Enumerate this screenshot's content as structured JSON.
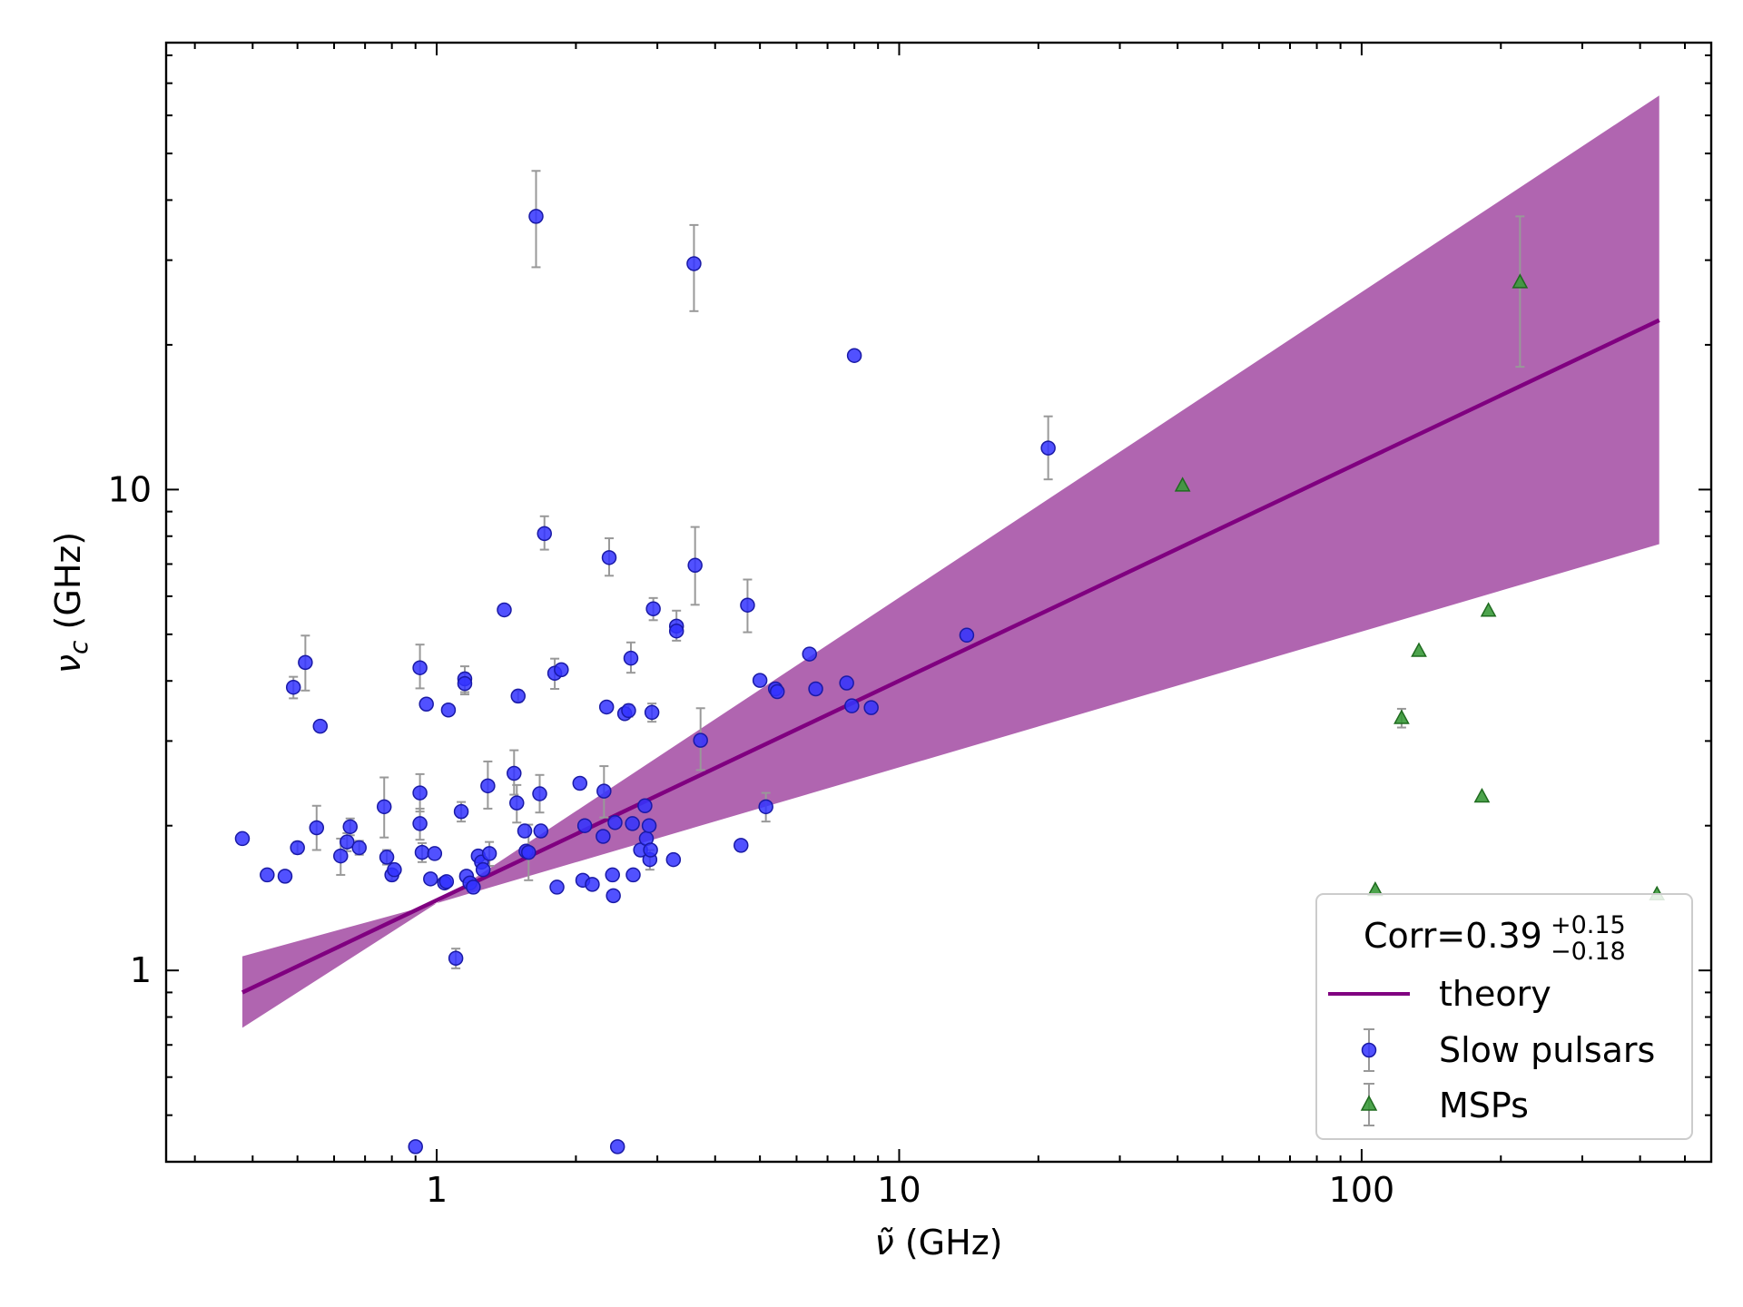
{
  "chart_data": {
    "type": "scatter",
    "title": "",
    "xlabel_main": "ν̃",
    "xlabel_unit": " (GHz)",
    "ylabel_main": "ν",
    "ylabel_sub": "c",
    "ylabel_unit": " (GHz)",
    "x_scale": "log",
    "y_scale": "log",
    "xlim": [
      0.26,
      570
    ],
    "ylim": [
      0.4,
      85
    ],
    "x_tick_labels": [
      {
        "value": 1,
        "label": "1"
      },
      {
        "value": 10,
        "label": "10"
      },
      {
        "value": 100,
        "label": "100"
      }
    ],
    "y_tick_labels": [
      {
        "value": 1,
        "label": "1"
      },
      {
        "value": 10,
        "label": "10"
      }
    ],
    "grid": false,
    "legend": {
      "placement": "bottom-right",
      "title_main": "Corr=0.39",
      "title_sup": "+0.15",
      "title_sub": "−0.18",
      "entries": [
        "theory",
        "Slow pulsars",
        "MSPs"
      ]
    },
    "colors": {
      "theory": "#800080",
      "band": "#b065b0",
      "slow": "#3333ff",
      "slow_edge": "#1a1aa6",
      "msp": "#3a9a3a",
      "msp_edge": "#1f6b1f",
      "errorbar": "#999999"
    },
    "theory_line": {
      "x": [
        0.38,
        440
      ],
      "y": [
        0.9,
        22.5
      ]
    },
    "band": {
      "x": [
        0.38,
        1.0,
        440
      ],
      "lower": [
        0.76,
        1.38,
        7.7
      ],
      "upper": [
        1.07,
        1.38,
        66
      ]
    },
    "series": [
      {
        "name": "Slow pulsars",
        "marker": "circle",
        "points": [
          {
            "x": 0.38,
            "y": 1.88
          },
          {
            "x": 0.43,
            "y": 1.58
          },
          {
            "x": 0.47,
            "y": 1.57
          },
          {
            "x": 0.49,
            "y": 3.88,
            "yerr": [
              0.2,
              0.2
            ]
          },
          {
            "x": 0.5,
            "y": 1.8,
            "yerr": [
              0.05,
              0.05
            ]
          },
          {
            "x": 0.52,
            "y": 4.37,
            "yerr": [
              0.55,
              0.6
            ]
          },
          {
            "x": 0.55,
            "y": 1.98,
            "yerr": [
              0.2,
              0.22
            ]
          },
          {
            "x": 0.56,
            "y": 3.22
          },
          {
            "x": 0.62,
            "y": 1.73,
            "yerr": [
              0.15,
              0.15
            ]
          },
          {
            "x": 0.64,
            "y": 1.85,
            "yerr": [
              0.08,
              0.08
            ]
          },
          {
            "x": 0.65,
            "y": 1.99,
            "yerr": [
              0.08,
              0.08
            ]
          },
          {
            "x": 0.68,
            "y": 1.8,
            "yerr": [
              0.06,
              0.06
            ]
          },
          {
            "x": 0.77,
            "y": 2.19,
            "yerr": [
              0.3,
              0.33
            ]
          },
          {
            "x": 0.78,
            "y": 1.72,
            "yerr": [
              0.06,
              0.06
            ]
          },
          {
            "x": 0.8,
            "y": 1.58,
            "yerr": [
              0.04,
              0.04
            ]
          },
          {
            "x": 0.81,
            "y": 1.62
          },
          {
            "x": 0.9,
            "y": 0.43
          },
          {
            "x": 0.92,
            "y": 4.26,
            "yerr": [
              0.4,
              0.5
            ]
          },
          {
            "x": 0.92,
            "y": 2.34,
            "yerr": [
              0.2,
              0.22
            ]
          },
          {
            "x": 0.92,
            "y": 2.02,
            "yerr": [
              0.15,
              0.15
            ]
          },
          {
            "x": 0.93,
            "y": 1.76,
            "yerr": [
              0.08,
              0.08
            ]
          },
          {
            "x": 0.95,
            "y": 3.58
          },
          {
            "x": 0.97,
            "y": 1.55
          },
          {
            "x": 0.99,
            "y": 1.75
          },
          {
            "x": 1.04,
            "y": 1.52
          },
          {
            "x": 1.05,
            "y": 1.53
          },
          {
            "x": 1.06,
            "y": 3.48
          },
          {
            "x": 1.1,
            "y": 1.06,
            "yerr": [
              0.05,
              0.05
            ]
          },
          {
            "x": 1.13,
            "y": 2.14,
            "yerr": [
              0.1,
              0.1
            ]
          },
          {
            "x": 1.15,
            "y": 4.04,
            "yerr": [
              0.25,
              0.25
            ]
          },
          {
            "x": 1.15,
            "y": 3.95,
            "yerr": [
              0.2,
              0.2
            ]
          },
          {
            "x": 1.16,
            "y": 1.57
          },
          {
            "x": 1.18,
            "y": 1.52
          },
          {
            "x": 1.2,
            "y": 1.49
          },
          {
            "x": 1.23,
            "y": 1.73
          },
          {
            "x": 1.25,
            "y": 1.68
          },
          {
            "x": 1.26,
            "y": 1.62
          },
          {
            "x": 1.29,
            "y": 2.42,
            "yerr": [
              0.25,
              0.3
            ]
          },
          {
            "x": 1.3,
            "y": 1.75,
            "yerr": [
              0.1,
              0.1
            ]
          },
          {
            "x": 1.4,
            "y": 5.62
          },
          {
            "x": 1.47,
            "y": 2.57,
            "yerr": [
              0.25,
              0.3
            ]
          },
          {
            "x": 1.49,
            "y": 2.23,
            "yerr": [
              0.2,
              0.2
            ]
          },
          {
            "x": 1.5,
            "y": 3.72,
            "yerr": [
              0.1,
              0.1
            ]
          },
          {
            "x": 1.55,
            "y": 1.95
          },
          {
            "x": 1.56,
            "y": 1.77
          },
          {
            "x": 1.58,
            "y": 1.76,
            "yerr": [
              0.22,
              0.25
            ]
          },
          {
            "x": 1.64,
            "y": 37.0,
            "yerr": [
              8.0,
              9.0
            ]
          },
          {
            "x": 1.67,
            "y": 2.33,
            "yerr": [
              0.2,
              0.22
            ]
          },
          {
            "x": 1.68,
            "y": 1.95
          },
          {
            "x": 1.71,
            "y": 8.1,
            "yerr": [
              0.6,
              0.7
            ]
          },
          {
            "x": 1.8,
            "y": 4.15,
            "yerr": [
              0.3,
              0.3
            ]
          },
          {
            "x": 1.82,
            "y": 1.49
          },
          {
            "x": 1.86,
            "y": 4.22
          },
          {
            "x": 2.04,
            "y": 2.45
          },
          {
            "x": 2.07,
            "y": 1.54
          },
          {
            "x": 2.09,
            "y": 2.0
          },
          {
            "x": 2.17,
            "y": 1.51
          },
          {
            "x": 2.29,
            "y": 1.9
          },
          {
            "x": 2.3,
            "y": 2.36,
            "yerr": [
              0.28,
              0.3
            ]
          },
          {
            "x": 2.33,
            "y": 3.53
          },
          {
            "x": 2.36,
            "y": 7.22,
            "yerr": [
              0.6,
              0.7
            ]
          },
          {
            "x": 2.4,
            "y": 1.58
          },
          {
            "x": 2.41,
            "y": 1.43
          },
          {
            "x": 2.43,
            "y": 2.03
          },
          {
            "x": 2.46,
            "y": 0.43
          },
          {
            "x": 2.55,
            "y": 3.42
          },
          {
            "x": 2.6,
            "y": 3.47,
            "yerr": [
              0.1,
              0.1
            ]
          },
          {
            "x": 2.63,
            "y": 4.46,
            "yerr": [
              0.3,
              0.35
            ]
          },
          {
            "x": 2.65,
            "y": 2.02
          },
          {
            "x": 2.66,
            "y": 1.58
          },
          {
            "x": 2.76,
            "y": 1.78
          },
          {
            "x": 2.82,
            "y": 2.2
          },
          {
            "x": 2.84,
            "y": 1.88
          },
          {
            "x": 2.88,
            "y": 2.0
          },
          {
            "x": 2.89,
            "y": 1.7,
            "yerr": [
              0.08,
              0.08
            ]
          },
          {
            "x": 2.9,
            "y": 1.78
          },
          {
            "x": 2.92,
            "y": 3.44,
            "yerr": [
              0.15,
              0.15
            ]
          },
          {
            "x": 2.94,
            "y": 5.65,
            "yerr": [
              0.3,
              0.3
            ]
          },
          {
            "x": 3.25,
            "y": 1.7
          },
          {
            "x": 3.3,
            "y": 5.2,
            "yerr": [
              0.35,
              0.4
            ]
          },
          {
            "x": 3.3,
            "y": 5.08
          },
          {
            "x": 3.6,
            "y": 29.5,
            "yerr": [
              6.0,
              6.0
            ]
          },
          {
            "x": 3.62,
            "y": 6.96,
            "yerr": [
              1.2,
              1.4
            ]
          },
          {
            "x": 3.72,
            "y": 3.01,
            "yerr": [
              0.4,
              0.5
            ]
          },
          {
            "x": 4.55,
            "y": 1.82
          },
          {
            "x": 4.7,
            "y": 5.75,
            "yerr": [
              0.7,
              0.75
            ]
          },
          {
            "x": 5.0,
            "y": 4.01
          },
          {
            "x": 5.15,
            "y": 2.19,
            "yerr": [
              0.15,
              0.15
            ]
          },
          {
            "x": 5.4,
            "y": 3.85
          },
          {
            "x": 5.45,
            "y": 3.8
          },
          {
            "x": 6.4,
            "y": 4.55
          },
          {
            "x": 6.6,
            "y": 3.85
          },
          {
            "x": 7.7,
            "y": 3.96
          },
          {
            "x": 7.9,
            "y": 3.55
          },
          {
            "x": 8.0,
            "y": 19.0
          },
          {
            "x": 8.7,
            "y": 3.52
          },
          {
            "x": 14.0,
            "y": 4.98
          },
          {
            "x": 21.0,
            "y": 12.2,
            "yerr": [
              1.7,
              2.0
            ]
          }
        ]
      },
      {
        "name": "MSPs",
        "marker": "triangle",
        "points": [
          {
            "x": 41.0,
            "y": 10.2
          },
          {
            "x": 107.0,
            "y": 1.47
          },
          {
            "x": 122.0,
            "y": 3.35,
            "yerr": [
              0.15,
              0.15
            ]
          },
          {
            "x": 133.0,
            "y": 4.62
          },
          {
            "x": 182.0,
            "y": 2.3
          },
          {
            "x": 188.0,
            "y": 5.6
          },
          {
            "x": 220.0,
            "y": 27.0,
            "yerr": [
              9.0,
              10.0
            ]
          },
          {
            "x": 435.0,
            "y": 1.44
          }
        ]
      }
    ]
  }
}
